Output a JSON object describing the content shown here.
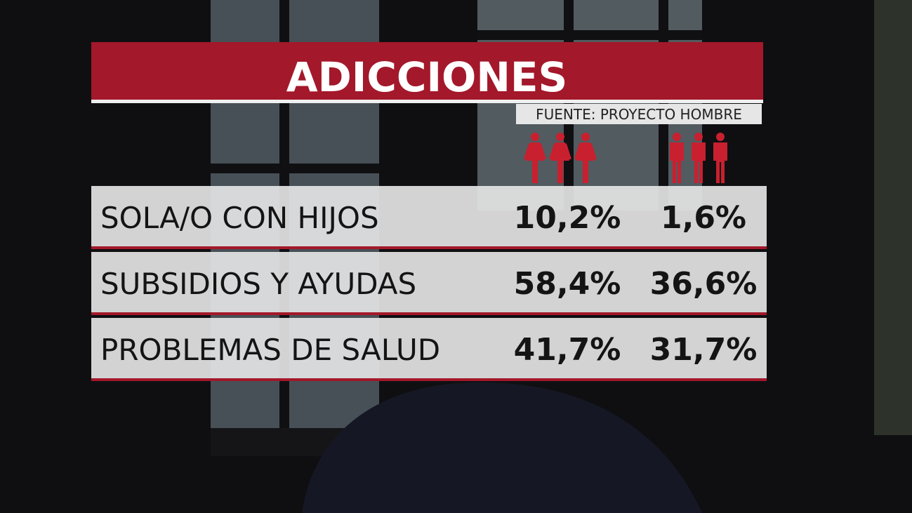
{
  "header": {
    "title": "ADICCIONES",
    "source": "FUENTE: PROYECTO HOMBRE"
  },
  "table": {
    "rows": [
      [
        "SOLA/O CON HIJOS",
        "10,2%",
        "1,6%"
      ],
      [
        "SUBSIDIOS Y AYUDAS",
        "58,4%",
        "36,6%"
      ],
      [
        "PROBLEMAS DE SALUD",
        "41,7%",
        "31,7%"
      ]
    ]
  }
}
